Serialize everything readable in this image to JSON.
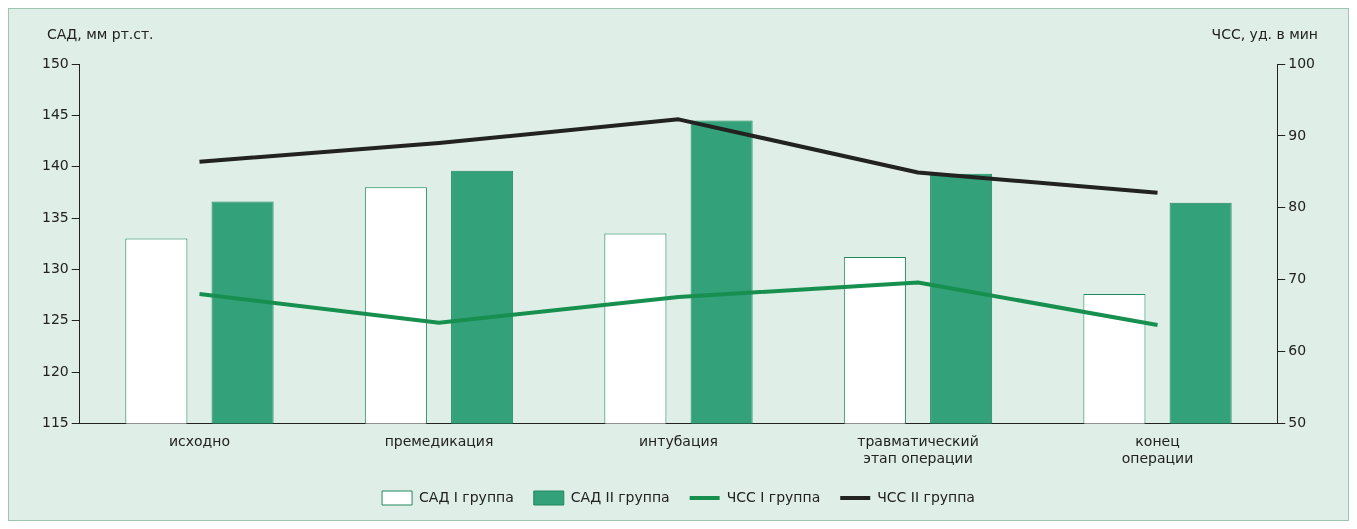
{
  "chart_data": {
    "type": "bar",
    "ylabel": "САД, мм рт.ст.",
    "y2label": "ЧСС, уд. в мин",
    "categories": [
      "исходно",
      "премедикация",
      "интубация",
      "травматический\nэтап операции",
      "конец\nоперации"
    ],
    "series": [
      {
        "name": "САД I группа",
        "color": "#ffffff",
        "values": [
          133.0,
          138.0,
          133.5,
          131.2,
          127.6
        ]
      },
      {
        "name": "САД II группа",
        "color": "#33a17a",
        "values": [
          136.6,
          139.6,
          144.5,
          139.3,
          136.5
        ]
      },
      {
        "name": "ЧСС I группа",
        "type": "line",
        "axis": "y2",
        "color": "#17904f",
        "values": [
          68.0,
          64.0,
          67.6,
          69.6,
          63.7
        ]
      },
      {
        "name": "ЧСС II группа",
        "type": "line",
        "axis": "y2",
        "color": "#222222",
        "values": [
          86.4,
          89.0,
          92.3,
          84.9,
          82.1
        ]
      }
    ],
    "ylim": [
      115,
      150
    ],
    "yticks": [
      115,
      120,
      125,
      130,
      135,
      140,
      145,
      150
    ],
    "y2lim": [
      50,
      100
    ],
    "y2ticks": [
      50,
      60,
      70,
      80,
      90,
      100
    ],
    "legend": "bottom",
    "marker": "none",
    "line_style": "solid"
  }
}
